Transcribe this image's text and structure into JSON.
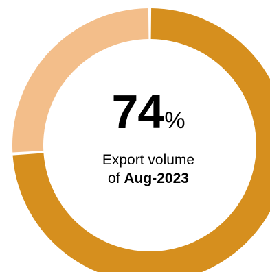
{
  "colors": {
    "primary": "#D68F1E",
    "secondary": "#F3BE8A",
    "background": "#FFFFFF"
  },
  "center_label": {
    "value": "74",
    "unit": "%",
    "line1": "Export volume",
    "line2_prefix": "of ",
    "line2_strong": "Aug-2023"
  },
  "chart_data": {
    "type": "pie",
    "style": "donut",
    "slices": [
      {
        "value": 74,
        "color": "#D68F1E"
      },
      {
        "value": 26,
        "color": "#F3BE8A"
      }
    ]
  }
}
